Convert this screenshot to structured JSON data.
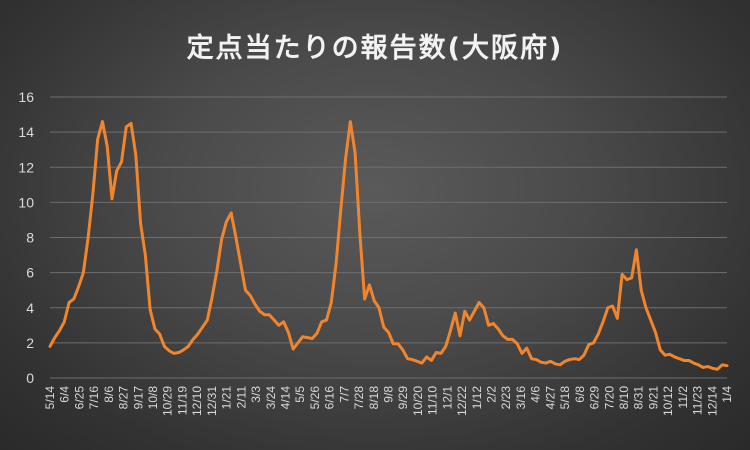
{
  "chart_data": {
    "type": "line",
    "title": "定点当たりの報告数(大阪府)",
    "xlabel": "",
    "ylabel": "",
    "ylim": [
      0,
      16
    ],
    "yticks": [
      0,
      2,
      4,
      6,
      8,
      10,
      12,
      14,
      16
    ],
    "grid": true,
    "legend": "none",
    "line_color": "#f0852d",
    "tick_labels": [
      "5/14",
      "6/4",
      "6/25",
      "7/16",
      "8/6",
      "8/27",
      "9/17",
      "10/8",
      "10/29",
      "11/19",
      "12/10",
      "12/31",
      "1/21",
      "2/11",
      "3/3",
      "3/24",
      "4/14",
      "5/5",
      "5/26",
      "6/16",
      "7/7",
      "7/28",
      "8/18",
      "9/8",
      "9/29",
      "10/20",
      "11/10",
      "12/1",
      "12/22",
      "1/12",
      "2/2",
      "2/23",
      "3/16",
      "4/6",
      "4/27",
      "5/18",
      "6/8",
      "6/29",
      "7/20",
      "8/10",
      "8/31",
      "9/21",
      "10/12",
      "11/2",
      "11/23",
      "12/14",
      "1/4"
    ],
    "values": [
      1.8,
      2.3,
      2.7,
      3.2,
      4.3,
      4.5,
      5.2,
      6.0,
      8.0,
      10.5,
      13.6,
      14.6,
      13.2,
      10.2,
      11.8,
      12.3,
      14.3,
      14.5,
      12.7,
      8.8,
      7.0,
      3.9,
      2.8,
      2.5,
      1.8,
      1.55,
      1.4,
      1.45,
      1.6,
      1.8,
      2.2,
      2.5,
      2.9,
      3.3,
      4.6,
      6.1,
      7.9,
      8.9,
      9.4,
      8.0,
      6.5,
      5.0,
      4.7,
      4.2,
      3.8,
      3.6,
      3.6,
      3.3,
      3.0,
      3.2,
      2.6,
      1.65,
      2.0,
      2.35,
      2.3,
      2.25,
      2.55,
      3.2,
      3.3,
      4.3,
      6.5,
      9.6,
      12.5,
      14.6,
      12.8,
      8.2,
      4.5,
      5.3,
      4.4,
      4.0,
      2.9,
      2.6,
      1.95,
      1.95,
      1.6,
      1.1,
      1.05,
      0.95,
      0.85,
      1.2,
      1.0,
      1.45,
      1.4,
      1.8,
      2.7,
      3.7,
      2.4,
      3.8,
      3.3,
      3.8,
      4.3,
      4.0,
      3.0,
      3.1,
      2.8,
      2.4,
      2.2,
      2.2,
      1.95,
      1.4,
      1.7,
      1.1,
      1.05,
      0.9,
      0.85,
      0.95,
      0.8,
      0.75,
      0.95,
      1.05,
      1.1,
      1.05,
      1.3,
      1.9,
      2.0,
      2.5,
      3.2,
      4.0,
      4.1,
      3.4,
      5.9,
      5.6,
      5.7,
      7.3,
      5.0,
      4.0,
      3.3,
      2.6,
      1.6,
      1.3,
      1.35,
      1.2,
      1.1,
      1.0,
      1.0,
      0.85,
      0.75,
      0.6,
      0.65,
      0.55,
      0.5,
      0.75,
      0.7
    ]
  }
}
